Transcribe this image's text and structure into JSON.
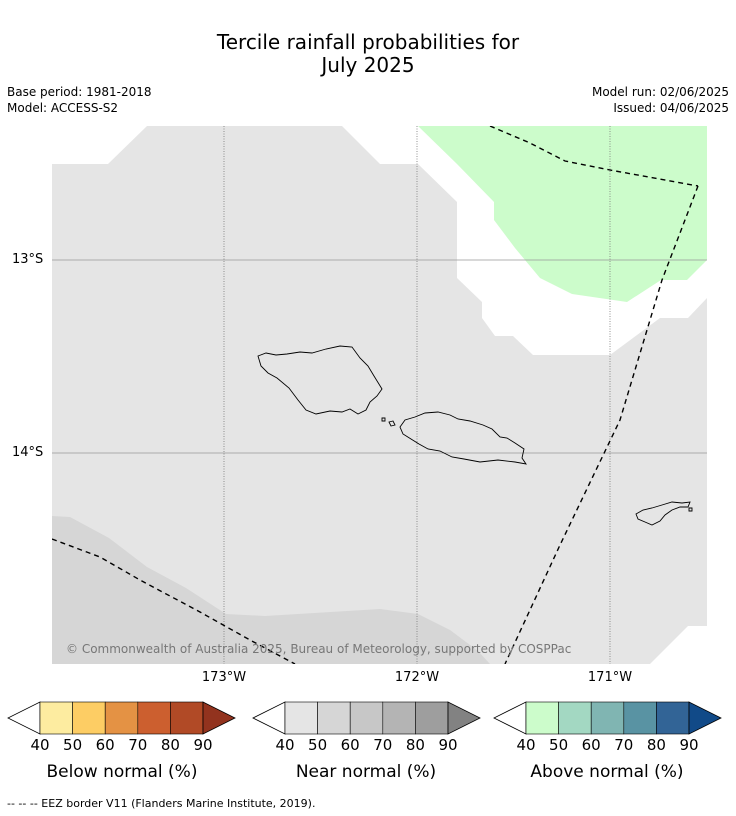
{
  "title_line1": "Tercile rainfall probabilities for",
  "title_line2": "July 2025",
  "meta_left": {
    "base_period": "Base period: 1981-2018",
    "model": "Model: ACCESS-S2"
  },
  "meta_right": {
    "model_run": "Model run: 02/06/2025",
    "issued": "Issued: 04/06/2025"
  },
  "lat_labels": [
    "13°S",
    "14°S"
  ],
  "lon_labels": [
    "173°W",
    "172°W",
    "171°W"
  ],
  "copyright": "© Commonwealth of Australia 2025, Bureau of Meteorology, supported by COSPPac",
  "colorbars": [
    {
      "title": "Below normal (%)",
      "ticks": [
        "40",
        "50",
        "60",
        "70",
        "80",
        "90"
      ],
      "colors": [
        "#ffffff",
        "#fdeca0",
        "#fdcd64",
        "#e49244",
        "#cc5f2f",
        "#b14a26",
        "#92331e"
      ]
    },
    {
      "title": "Near normal (%)",
      "ticks": [
        "40",
        "50",
        "60",
        "70",
        "80",
        "90"
      ],
      "colors": [
        "#ffffff",
        "#e5e5e5",
        "#d6d6d6",
        "#c7c7c7",
        "#b4b4b4",
        "#9e9e9e",
        "#828282"
      ]
    },
    {
      "title": "Above normal (%)",
      "ticks": [
        "40",
        "50",
        "60",
        "70",
        "80",
        "90"
      ],
      "colors": [
        "#ffffff",
        "#ccfccb",
        "#a3d8c2",
        "#80b5b2",
        "#5993a3",
        "#326496",
        "#114a88"
      ]
    }
  ],
  "footer": "-- -- -- EEZ border V11 (Flanders Marine Institute, 2019)."
}
